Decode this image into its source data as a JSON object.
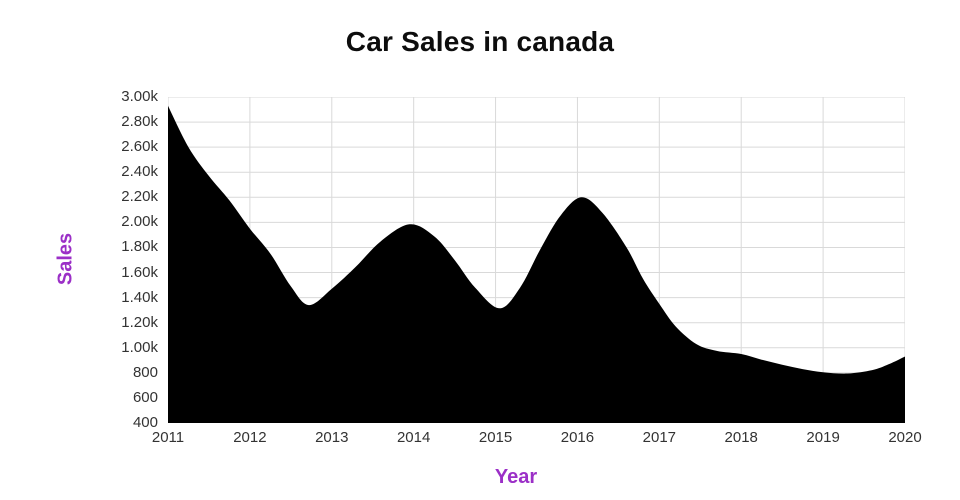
{
  "title": "Car Sales in canada",
  "chart_data": {
    "type": "area",
    "title": "Car Sales in canada",
    "xlabel": "Year",
    "ylabel": "Sales",
    "series_name": "Car Sales",
    "categories": [
      2011,
      2012,
      2013,
      2014,
      2015,
      2016,
      2017,
      2018,
      2019,
      2020
    ],
    "values": [
      2930,
      1950,
      1470,
      1985,
      1315,
      2200,
      1350,
      950,
      805,
      930
    ],
    "xlim": [
      2011,
      2020
    ],
    "ylim": [
      400,
      3000
    ],
    "grid": true,
    "legend_position": "none",
    "colors": {
      "area": "#000000",
      "axis_titles": "#9b2fc7",
      "tick_labels": "#333333",
      "gridlines": "#d9d9d9",
      "title": "#0d0d0d",
      "background": "#ffffff"
    },
    "y_ticks": [
      {
        "value": 3000,
        "label": "3.00k"
      },
      {
        "value": 2800,
        "label": "2.80k"
      },
      {
        "value": 2600,
        "label": "2.60k"
      },
      {
        "value": 2400,
        "label": "2.40k"
      },
      {
        "value": 2200,
        "label": "2.20k"
      },
      {
        "value": 2000,
        "label": "2.00k"
      },
      {
        "value": 1800,
        "label": "1.80k"
      },
      {
        "value": 1600,
        "label": "1.60k"
      },
      {
        "value": 1400,
        "label": "1.40k"
      },
      {
        "value": 1200,
        "label": "1.20k"
      },
      {
        "value": 1000,
        "label": "1.00k"
      },
      {
        "value": 800,
        "label": "800"
      },
      {
        "value": 600,
        "label": "600"
      },
      {
        "value": 400,
        "label": "400"
      }
    ],
    "x_ticks": [
      {
        "value": 2011,
        "label": "2011"
      },
      {
        "value": 2012,
        "label": "2012"
      },
      {
        "value": 2013,
        "label": "2013"
      },
      {
        "value": 2014,
        "label": "2014"
      },
      {
        "value": 2015,
        "label": "2015"
      },
      {
        "value": 2016,
        "label": "2016"
      },
      {
        "value": 2017,
        "label": "2017"
      },
      {
        "value": 2018,
        "label": "2018"
      },
      {
        "value": 2019,
        "label": "2019"
      },
      {
        "value": 2020,
        "label": "2020"
      }
    ],
    "curve_samples": [
      [
        2011.0,
        2930
      ],
      [
        2011.25,
        2600
      ],
      [
        2011.5,
        2370
      ],
      [
        2011.75,
        2175
      ],
      [
        2012.0,
        1950
      ],
      [
        2012.25,
        1750
      ],
      [
        2012.5,
        1490
      ],
      [
        2012.72,
        1340
      ],
      [
        2013.0,
        1470
      ],
      [
        2013.3,
        1650
      ],
      [
        2013.6,
        1850
      ],
      [
        2013.95,
        1985
      ],
      [
        2014.25,
        1890
      ],
      [
        2014.5,
        1700
      ],
      [
        2014.75,
        1480
      ],
      [
        2015.05,
        1315
      ],
      [
        2015.3,
        1480
      ],
      [
        2015.55,
        1790
      ],
      [
        2015.8,
        2060
      ],
      [
        2016.05,
        2200
      ],
      [
        2016.3,
        2080
      ],
      [
        2016.6,
        1800
      ],
      [
        2016.8,
        1550
      ],
      [
        2017.0,
        1350
      ],
      [
        2017.2,
        1170
      ],
      [
        2017.45,
        1030
      ],
      [
        2017.7,
        975
      ],
      [
        2018.0,
        950
      ],
      [
        2018.25,
        905
      ],
      [
        2018.5,
        865
      ],
      [
        2018.75,
        830
      ],
      [
        2019.0,
        805
      ],
      [
        2019.3,
        795
      ],
      [
        2019.6,
        822
      ],
      [
        2019.8,
        868
      ],
      [
        2020.0,
        930
      ]
    ]
  }
}
